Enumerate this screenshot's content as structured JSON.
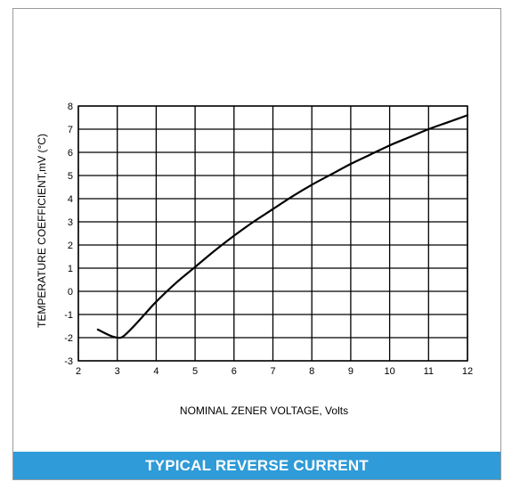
{
  "banner": {
    "title": "TYPICAL REVERSE CURRENT"
  },
  "chart_data": {
    "type": "line",
    "title": "",
    "xlabel": "NOMINAL ZENER VOLTAGE, Volts",
    "ylabel": "TEMPERATURE COEFFICIENT,mV (°C)",
    "xlim": [
      2,
      12
    ],
    "ylim": [
      -3,
      8
    ],
    "xticks": [
      2,
      3,
      4,
      5,
      6,
      7,
      8,
      9,
      10,
      11,
      12
    ],
    "yticks": [
      -3,
      -2,
      -1,
      0,
      1,
      2,
      3,
      4,
      5,
      6,
      7,
      8
    ],
    "grid": true,
    "series": [
      {
        "name": "",
        "color": "#000000",
        "x": [
          2.5,
          2.8,
          3.0,
          3.15,
          3.4,
          3.7,
          4.0,
          4.5,
          5.0,
          5.5,
          6.0,
          6.5,
          7.0,
          7.5,
          8.0,
          8.5,
          9.0,
          9.5,
          10.0,
          10.5,
          11.0,
          11.5,
          12.0
        ],
        "y": [
          -1.65,
          -1.9,
          -2.0,
          -1.95,
          -1.55,
          -1.0,
          -0.45,
          0.35,
          1.05,
          1.75,
          2.4,
          3.0,
          3.55,
          4.1,
          4.6,
          5.05,
          5.5,
          5.9,
          6.3,
          6.65,
          7.0,
          7.3,
          7.6
        ]
      }
    ]
  }
}
